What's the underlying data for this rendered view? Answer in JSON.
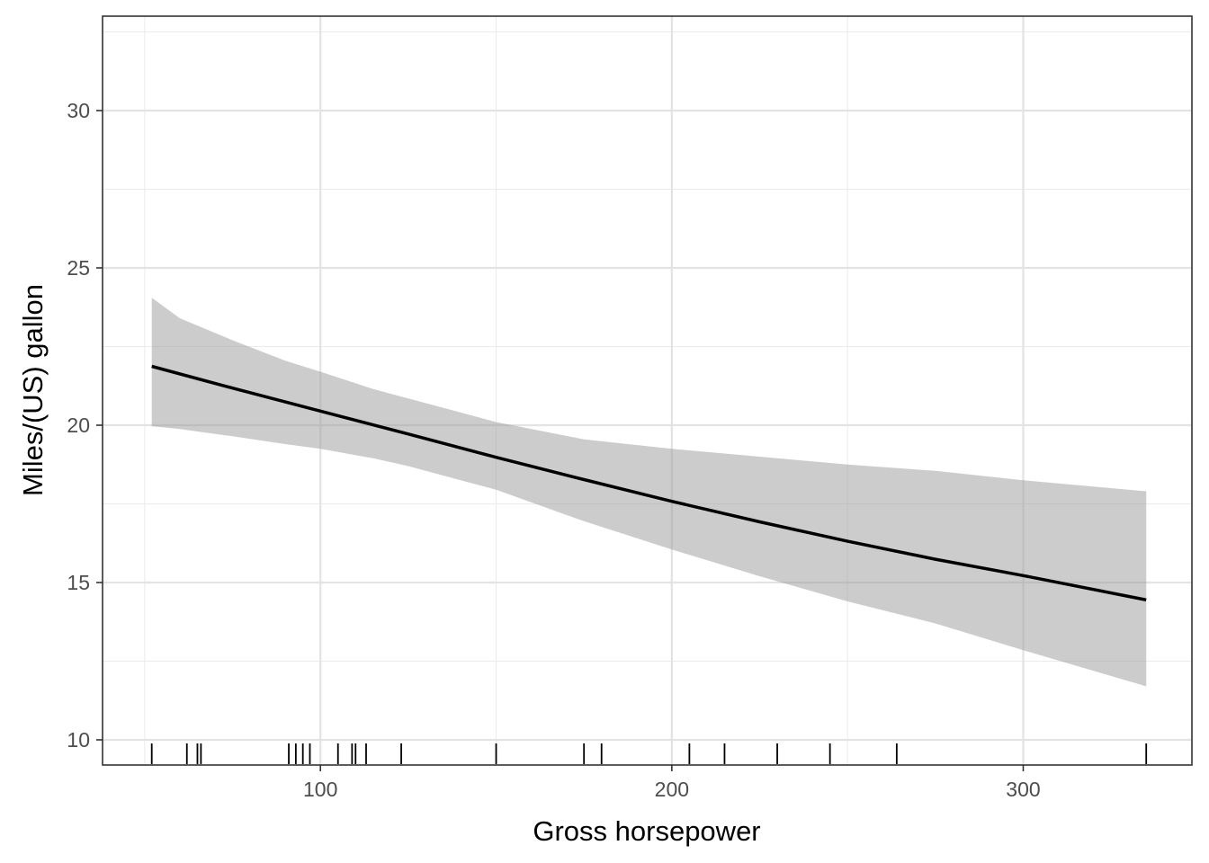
{
  "chart_data": {
    "type": "line",
    "title": "",
    "xlabel": "Gross horsepower",
    "ylabel": "Miles/(US) gallon",
    "xlim": [
      38,
      348
    ],
    "ylim": [
      9.2,
      33.0
    ],
    "x_ticks": [
      100,
      200,
      300
    ],
    "y_ticks": [
      10,
      15,
      20,
      25,
      30
    ],
    "grid": true,
    "series": [
      {
        "type": "line",
        "x": [
          52,
          75,
          100,
          125,
          150,
          175,
          200,
          225,
          250,
          275,
          300,
          335
        ],
        "y": [
          21.87,
          21.18,
          20.45,
          19.72,
          18.98,
          18.27,
          17.58,
          16.93,
          16.31,
          15.74,
          15.22,
          14.45
        ]
      },
      {
        "type": "ribbon",
        "x": [
          52,
          60,
          75,
          90,
          100,
          115,
          125,
          150,
          175,
          200,
          225,
          250,
          275,
          300,
          335
        ],
        "lower": [
          19.97,
          19.88,
          19.65,
          19.4,
          19.25,
          18.95,
          18.7,
          17.95,
          16.95,
          16.05,
          15.2,
          14.4,
          13.7,
          12.85,
          11.7
        ],
        "upper": [
          24.05,
          23.4,
          22.7,
          22.05,
          21.7,
          21.15,
          20.85,
          20.1,
          19.55,
          19.25,
          19.0,
          18.75,
          18.55,
          18.25,
          17.9
        ]
      }
    ],
    "rug_x": [
      52,
      62,
      65,
      66,
      91,
      93,
      95,
      97,
      105,
      109,
      110,
      113,
      123,
      150,
      175,
      180,
      205,
      215,
      230,
      245,
      264,
      335
    ]
  }
}
